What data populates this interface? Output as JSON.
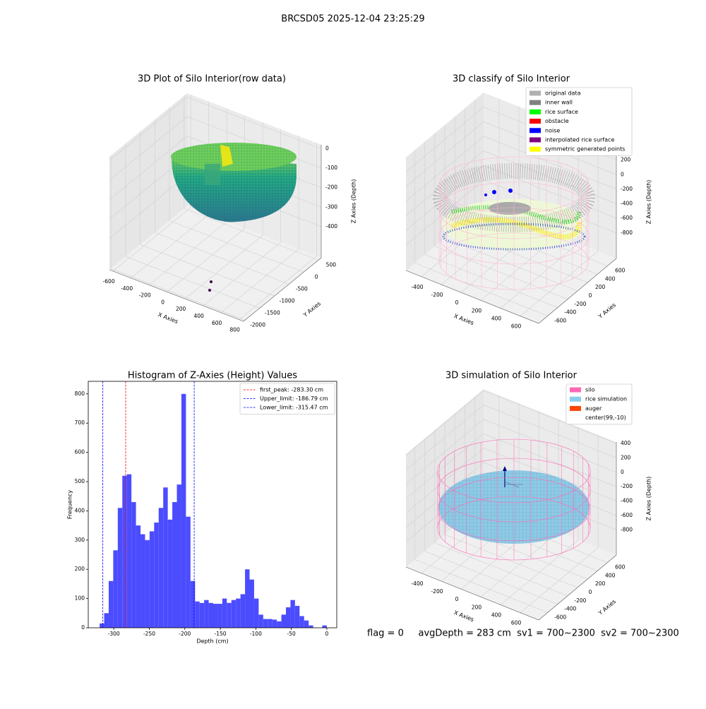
{
  "title": "BRCSD05 2025-12-04 23:25:29",
  "footer": "flag = 0     avgDepth = 283 cm  sv1 = 700~2300  sv2 = 700~2300",
  "chart_data": [
    {
      "type": "scatter3d",
      "title": "3D Plot of Silo Interior(row data)",
      "xlabel": "X Axies",
      "ylabel": "Y Axies",
      "zlabel": "Z Axies (Depth)",
      "xlim": [
        -640,
        850
      ],
      "ylim": [
        -2050,
        600
      ],
      "zlim": [
        -560,
        20
      ],
      "xticks": [
        -600,
        -400,
        -200,
        0,
        200,
        400,
        600,
        800
      ],
      "yticks": [
        -2000,
        -1500,
        -1000,
        -500,
        0,
        500
      ],
      "zticks": [
        -400,
        -300,
        -200,
        -100,
        0
      ]
    },
    {
      "type": "scatter3d",
      "title": "3D classify of Silo Interior",
      "xlabel": "X Axies",
      "ylabel": "Y Axies",
      "zlabel": "Z Axies (Depth)",
      "xlim": [
        -557,
        785
      ],
      "ylim": [
        -780,
        780
      ],
      "zlim": [
        -1150,
        400
      ],
      "xticks": [
        -400,
        -200,
        0,
        200,
        400,
        600
      ],
      "yticks": [
        -600,
        -400,
        -200,
        0,
        200,
        400,
        600
      ],
      "zticks": [
        -800,
        -600,
        -400,
        -200,
        0,
        200
      ],
      "legend": [
        {
          "name": "original data",
          "color": "#b0b0b0"
        },
        {
          "name": "inner wall",
          "color": "#808080"
        },
        {
          "name": "rice surface",
          "color": "#00ff00"
        },
        {
          "name": "obstacle",
          "color": "#ff0000"
        },
        {
          "name": "noise",
          "color": "#0000ff"
        },
        {
          "name": "interpolated rice surface",
          "color": "#800080"
        },
        {
          "name": "symmetric generated points",
          "color": "#ffff00"
        }
      ]
    },
    {
      "type": "histogram",
      "title": "Histogram of Z-Axies (Height) Values",
      "xlabel": "Depth (cm)",
      "ylabel": "Frequency",
      "color": "#4c4cff",
      "bins": [
        -320,
        -313.6,
        -307.2,
        -300.8,
        -294.4,
        -288,
        -281.6,
        -275.2,
        -268.8,
        -262.4,
        -256,
        -249.6,
        -243.2,
        -236.8,
        -230.4,
        -224,
        -217.6,
        -211.2,
        -204.8,
        -198.4,
        -192,
        -185.6,
        -179.2,
        -172.8,
        -166.4,
        -160,
        -153.6,
        -147.2,
        -140.8,
        -134.4,
        -128,
        -121.6,
        -115.2,
        -108.8,
        -102.4,
        -96,
        -89.6,
        -83.2,
        -76.8,
        -70.4,
        -64,
        -57.6,
        -51.2,
        -44.8,
        -38.4,
        -32,
        -25.6,
        -19.2,
        -12.8,
        -6.4,
        0
      ],
      "counts": [
        15,
        50,
        160,
        265,
        410,
        520,
        525,
        430,
        350,
        320,
        300,
        330,
        360,
        410,
        480,
        370,
        430,
        490,
        800,
        380,
        160,
        90,
        85,
        95,
        85,
        82,
        82,
        100,
        85,
        95,
        100,
        115,
        200,
        165,
        100,
        45,
        30,
        30,
        28,
        22,
        45,
        70,
        95,
        75,
        40,
        25,
        8,
        0,
        0,
        8
      ],
      "xlim": [
        -336,
        14
      ],
      "ylim": [
        0,
        843
      ],
      "xticks": [
        -300,
        -250,
        -200,
        -150,
        -100,
        -50,
        0
      ],
      "yticks": [
        0,
        100,
        200,
        300,
        400,
        500,
        600,
        700,
        800
      ],
      "lines": [
        {
          "name": "first_peak: -283.30 cm",
          "value": -283.3,
          "color": "#ff0000"
        },
        {
          "name": "Upper_limit: -186.79 cm",
          "value": -186.79,
          "color": "#0000ff"
        },
        {
          "name": "Lower_limit: -315.47 cm",
          "value": -315.47,
          "color": "#0000ff"
        }
      ],
      "legend_loc": "upper right"
    },
    {
      "type": "scatter3d",
      "title": "3D simulation of Silo Interior",
      "xlabel": "X Axies",
      "ylabel": "Y Axies",
      "zlabel": "Z Axies (Depth)",
      "xlim": [
        -557,
        785
      ],
      "ylim": [
        -780,
        780
      ],
      "zlim": [
        -1150,
        420
      ],
      "xticks": [
        -400,
        -200,
        0,
        200,
        400,
        600
      ],
      "yticks": [
        -600,
        -400,
        -200,
        0,
        200,
        400,
        600
      ],
      "zticks": [
        -800,
        -600,
        -400,
        -200,
        0,
        200,
        400
      ],
      "legend": [
        {
          "name": "silo",
          "color": "#ff69b4"
        },
        {
          "name": "rice simulation",
          "color": "#87ceeb"
        },
        {
          "name": "auger",
          "color": "#ff4500"
        },
        {
          "name": "center(99,-10)",
          "color": "#ffffff"
        }
      ]
    }
  ]
}
